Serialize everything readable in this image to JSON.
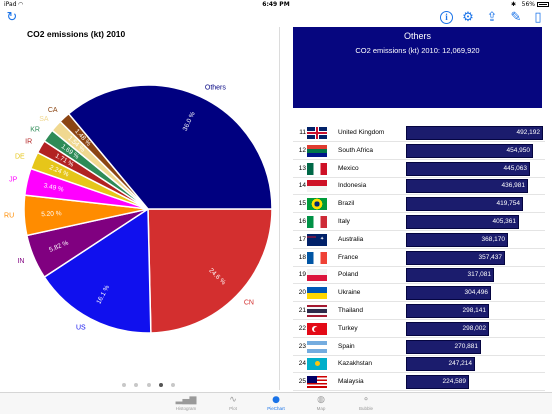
{
  "status_bar": {
    "carrier": "iPad",
    "time": "6:49 PM",
    "battery": "56%"
  },
  "navbar": {
    "left_icon": "refresh-icon",
    "right_icons": [
      "info-icon",
      "settings-icon",
      "share-icon",
      "edit-icon",
      "book-icon"
    ]
  },
  "chart_title": "CO2 emissions (kt) 2010",
  "chart_data": {
    "type": "pie",
    "title": "CO2 emissions (kt) 2010",
    "slices": [
      {
        "name": "Others",
        "value": 36.0,
        "label": "36.0 %",
        "color": "#000080"
      },
      {
        "name": "CN",
        "value": 24.6,
        "label": "24.6 %",
        "color": "#d32f2f"
      },
      {
        "name": "US",
        "value": 16.1,
        "label": "16.1 %",
        "color": "#1010ee"
      },
      {
        "name": "IN",
        "value": 5.82,
        "label": "5.82 %",
        "color": "#800080"
      },
      {
        "name": "RU",
        "value": 5.2,
        "label": "5.20 %",
        "color": "#ff8c00"
      },
      {
        "name": "JP",
        "value": 3.49,
        "label": "3.49 %",
        "color": "#ff00ff"
      },
      {
        "name": "DE",
        "value": 2.24,
        "label": "2.24 %",
        "color": "#e6c619"
      },
      {
        "name": "IR",
        "value": 1.71,
        "label": "1.71 %",
        "color": "#b22222"
      },
      {
        "name": "KR",
        "value": 1.69,
        "label": "1.69 %",
        "color": "#2e8b57"
      },
      {
        "name": "SA",
        "value": 1.54,
        "label": "1.54 %",
        "color": "#f0d890"
      },
      {
        "name": "CA",
        "value": 1.48,
        "label": "1.48 %",
        "color": "#8b4513"
      }
    ]
  },
  "page_indicator": {
    "count": 5,
    "active": 3
  },
  "summary": {
    "title": "Others",
    "subtitle": "CO2 emissions (kt) 2010: 12,069,920",
    "bg_color": "#06067f"
  },
  "ranking": {
    "max": 492192,
    "rows": [
      {
        "rank": "11",
        "name": "United Kingdom",
        "value": 492192,
        "value_text": "492,192",
        "flag": "uk"
      },
      {
        "rank": "12",
        "name": "South Africa",
        "value": 454950,
        "value_text": "454,950",
        "flag": "za"
      },
      {
        "rank": "13",
        "name": "Mexico",
        "value": 445063,
        "value_text": "445,063",
        "flag": "mx"
      },
      {
        "rank": "14",
        "name": "Indonesia",
        "value": 436981,
        "value_text": "436,981",
        "flag": "id"
      },
      {
        "rank": "15",
        "name": "Brazil",
        "value": 419754,
        "value_text": "419,754",
        "flag": "br"
      },
      {
        "rank": "16",
        "name": "Italy",
        "value": 405361,
        "value_text": "405,361",
        "flag": "it"
      },
      {
        "rank": "17",
        "name": "Australia",
        "value": 368170,
        "value_text": "368,170",
        "flag": "au"
      },
      {
        "rank": "18",
        "name": "France",
        "value": 357437,
        "value_text": "357,437",
        "flag": "fr"
      },
      {
        "rank": "19",
        "name": "Poland",
        "value": 317081,
        "value_text": "317,081",
        "flag": "pl"
      },
      {
        "rank": "20",
        "name": "Ukraine",
        "value": 304496,
        "value_text": "304,496",
        "flag": "ua"
      },
      {
        "rank": "21",
        "name": "Thailand",
        "value": 298141,
        "value_text": "298,141",
        "flag": "th"
      },
      {
        "rank": "22",
        "name": "Turkey",
        "value": 298002,
        "value_text": "298,002",
        "flag": "tr"
      },
      {
        "rank": "23",
        "name": "Spain",
        "value": 270881,
        "value_text": "270,881",
        "flag": "ar"
      },
      {
        "rank": "24",
        "name": "Kazakhstan",
        "value": 247214,
        "value_text": "247,214",
        "flag": "kz"
      },
      {
        "rank": "25",
        "name": "Malaysia",
        "value": 224589,
        "value_text": "224,589",
        "flag": "my"
      }
    ]
  },
  "tabs": [
    {
      "label": "Histogram",
      "icon": "histogram-icon",
      "active": false
    },
    {
      "label": "Plot",
      "icon": "line-plot-icon",
      "active": false
    },
    {
      "label": "PieChart",
      "icon": "pie-chart-icon",
      "active": true
    },
    {
      "label": "Map",
      "icon": "map-icon",
      "active": false
    },
    {
      "label": "Bubble",
      "icon": "bubble-icon",
      "active": false
    }
  ]
}
